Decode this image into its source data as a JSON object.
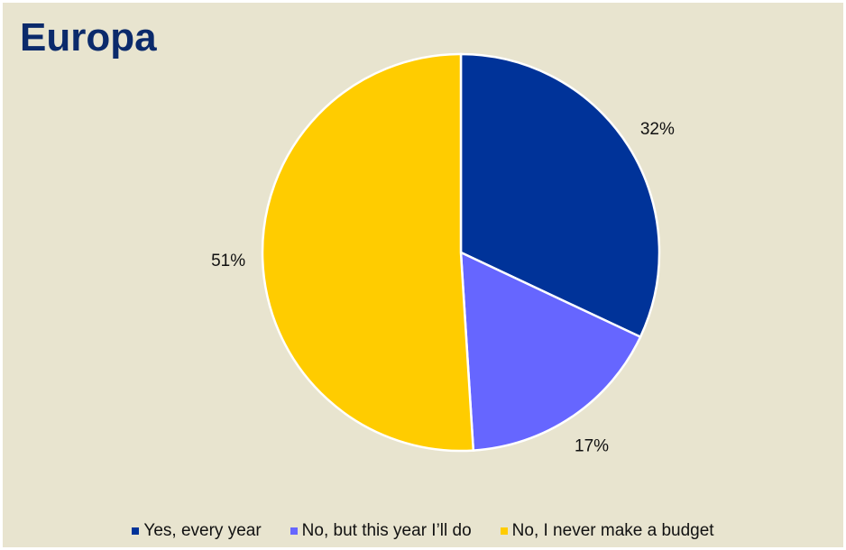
{
  "chart_data": {
    "type": "pie",
    "title": "Europa",
    "categories": [
      "Yes, every year",
      "No, but this year I’ll do",
      "No, I never make a budget"
    ],
    "values": [
      32,
      17,
      51
    ],
    "labels": [
      "32%",
      "17%",
      "51%"
    ],
    "colors": [
      "#003399",
      "#6666ff",
      "#ffcc00"
    ],
    "legend_position": "bottom"
  }
}
